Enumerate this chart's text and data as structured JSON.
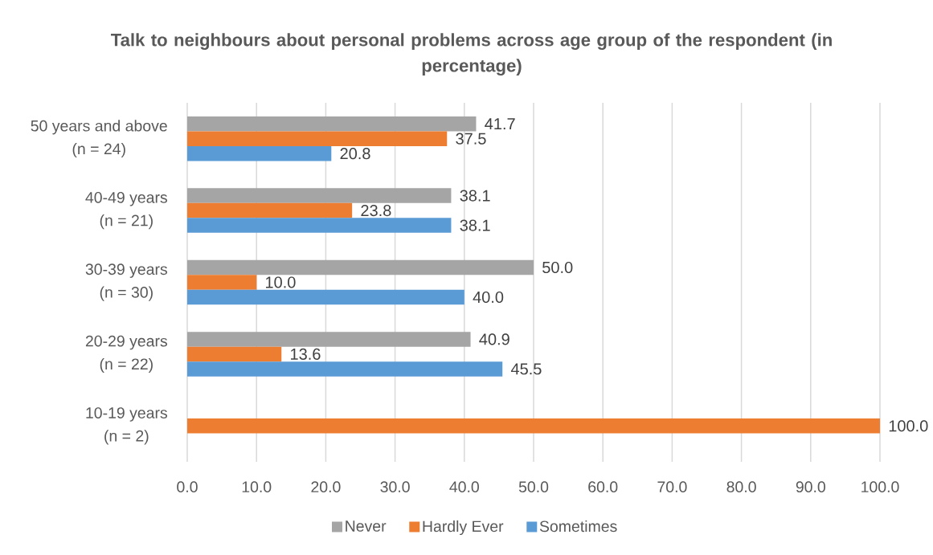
{
  "chart_data": {
    "type": "bar",
    "orientation": "horizontal",
    "title": "Talk to neighbours about personal problems across age group of the respondent (in percentage)",
    "categories": [
      "50 years and above (n = 24)",
      "40-49 years (n = 21)",
      "30-39 years (n = 30)",
      "20-29 years (n = 22)",
      "10-19 years (n = 2)"
    ],
    "series": [
      {
        "name": "Never",
        "color": "#a5a5a5",
        "values": [
          41.7,
          38.1,
          50.0,
          40.9,
          null
        ],
        "value_labels": [
          "41.7",
          "38.1",
          "50.0",
          "40.9",
          null
        ]
      },
      {
        "name": "Hardly Ever",
        "color": "#ed7d31",
        "values": [
          37.5,
          23.8,
          10.0,
          13.6,
          100.0
        ],
        "value_labels": [
          "37.5",
          "23.8",
          "10.0",
          "13.6",
          "100.0"
        ]
      },
      {
        "name": "Sometimes",
        "color": "#5b9bd5",
        "values": [
          20.8,
          38.1,
          40.0,
          45.5,
          null
        ],
        "value_labels": [
          "20.8",
          "38.1",
          "40.0",
          "45.5",
          null
        ]
      }
    ],
    "xlim": [
      0,
      100
    ],
    "xticks": [
      {
        "value": 0,
        "label": "0.0"
      },
      {
        "value": 10,
        "label": "10.0"
      },
      {
        "value": 20,
        "label": "20.0"
      },
      {
        "value": 30,
        "label": "30.0"
      },
      {
        "value": 40,
        "label": "40.0"
      },
      {
        "value": 50,
        "label": "50.0"
      },
      {
        "value": 60,
        "label": "60.0"
      },
      {
        "value": 70,
        "label": "70.0"
      },
      {
        "value": 80,
        "label": "80.0"
      },
      {
        "value": 90,
        "label": "90.0"
      },
      {
        "value": 100,
        "label": "100.0"
      }
    ],
    "grid": "x",
    "legend": "bottom"
  }
}
